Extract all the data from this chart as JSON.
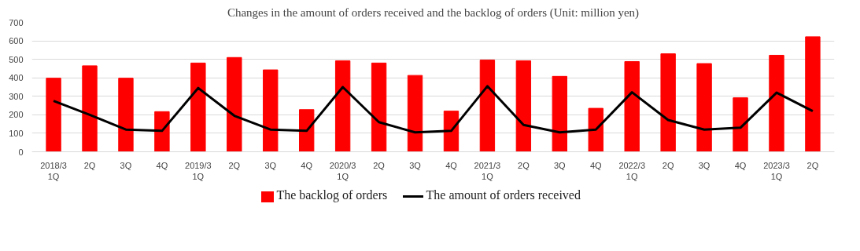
{
  "chart_data": {
    "type": "bar",
    "title": "Changes in the amount of orders received and the backlog of orders (Unit: million yen)",
    "categories": [
      "2018/3\n1Q",
      "2Q",
      "3Q",
      "4Q",
      "2019/3\n1Q",
      "2Q",
      "3Q",
      "4Q",
      "2020/3\n1Q",
      "2Q",
      "3Q",
      "4Q",
      "2021/3\n1Q",
      "2Q",
      "3Q",
      "4Q",
      "2022/3\n1Q",
      "2Q",
      "3Q",
      "4Q",
      "2023/3\n1Q",
      "2Q"
    ],
    "series": [
      {
        "name": "The backlog of orders",
        "type": "bar",
        "color": "#ff0000",
        "values": [
          398,
          465,
          398,
          217,
          480,
          510,
          443,
          228,
          492,
          480,
          413,
          220,
          496,
          492,
          408,
          235,
          488,
          530,
          477,
          292,
          522,
          622
        ]
      },
      {
        "name": "The amount of orders received",
        "type": "line",
        "color": "#000000",
        "values": [
          275,
          200,
          120,
          113,
          345,
          195,
          120,
          113,
          350,
          160,
          105,
          113,
          355,
          145,
          105,
          120,
          322,
          172,
          120,
          130,
          320,
          220
        ]
      }
    ],
    "ylim": [
      0,
      700
    ],
    "yticks": [
      0,
      100,
      200,
      300,
      400,
      500,
      600,
      700
    ],
    "grid": "y",
    "legend": "bottom",
    "marker": "none",
    "line_style": "solid"
  }
}
